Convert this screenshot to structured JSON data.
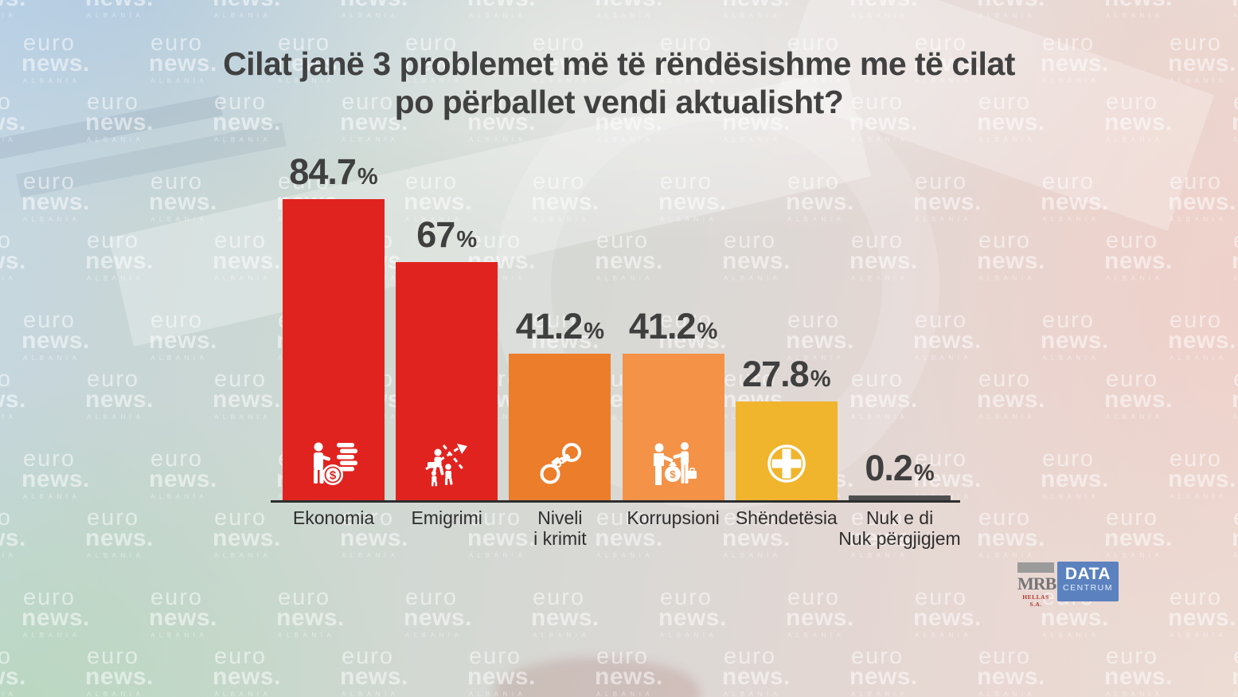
{
  "title": {
    "line1": "Cilat janë 3 problemet më të rëndësishme me të cilat",
    "line2": "po përballet vendi aktualisht?"
  },
  "watermark": {
    "line1": "euro",
    "line2": "news.",
    "line3": "ALBANIA"
  },
  "chart_data": {
    "type": "bar",
    "title": "Cilat janë 3 problemet më të rëndësishme me të cilat po përballet vendi aktualisht?",
    "categories": [
      "Ekonomia",
      "Emigrimi",
      "Niveli i krimit",
      "Korrupsioni",
      "Shëndetësia",
      "Nuk e di / Nuk përgjigjem"
    ],
    "values": [
      84.7,
      67,
      41.2,
      41.2,
      27.8,
      0.2
    ],
    "value_labels": [
      "84.7%",
      "67%",
      "41.2%",
      "41.2%",
      "27.8%",
      "0.2%"
    ],
    "bar_colors": [
      "#e1231f",
      "#e1231f",
      "#ec7d2b",
      "#f49247",
      "#f0b52c",
      "#4f4f4f"
    ],
    "ylim": [
      0,
      100
    ],
    "grid": false,
    "legend": false,
    "xlabel": "",
    "ylabel": ""
  },
  "bars": [
    {
      "slug": "ekonomia",
      "label_lines": [
        "Ekonomia"
      ],
      "value": 84.7,
      "display": "84.7",
      "unit": "%",
      "color": "#e1231f",
      "icon": "economy-icon"
    },
    {
      "slug": "emigrimi",
      "label_lines": [
        "Emigrimi"
      ],
      "value": 67,
      "display": "67",
      "unit": "%",
      "color": "#e1231f",
      "icon": "emigration-icon"
    },
    {
      "slug": "niveli-i-krimit",
      "label_lines": [
        "Niveli",
        "i krimit"
      ],
      "value": 41.2,
      "display": "41.2",
      "unit": "%",
      "color": "#ec7d2b",
      "icon": "handcuffs-icon"
    },
    {
      "slug": "korrupsioni",
      "label_lines": [
        "Korrupsioni"
      ],
      "value": 41.2,
      "display": "41.2",
      "unit": "%",
      "color": "#f49247",
      "icon": "corruption-icon"
    },
    {
      "slug": "shendetesia",
      "label_lines": [
        "Shëndetësia"
      ],
      "value": 27.8,
      "display": "27.8",
      "unit": "%",
      "color": "#f0b52c",
      "icon": "health-plus-icon"
    },
    {
      "slug": "nuk-e-di",
      "label_lines": [
        "Nuk e di",
        "Nuk përgjigjem"
      ],
      "value": 0.2,
      "display": "0.2",
      "unit": "%",
      "color": "#4f4f4f",
      "icon": null
    }
  ],
  "logos": {
    "mrb": {
      "name": "MRB",
      "subtitle": "HELLAS S.A."
    },
    "datacentrum": {
      "line1": "DATA",
      "line2": "CENTRUM",
      "bg_color": "#5b82bf"
    }
  },
  "colors": {
    "title_text": "#414141",
    "value_text": "#3f3f3f",
    "category_text": "#2e2e2e",
    "baseline": "#2d2d2d",
    "watermark": "rgba(255,255,255,0.52)"
  }
}
